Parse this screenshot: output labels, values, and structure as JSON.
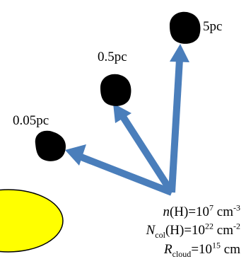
{
  "distances": [
    "0.05pc",
    "0.5pc",
    "5pc"
  ],
  "conditions": [
    {
      "parts": [
        "n",
        "(H)=10",
        "7",
        " cm",
        "-3"
      ]
    },
    {
      "parts": [
        "N",
        "col",
        "(H)=10",
        "22",
        " cm",
        "-2"
      ]
    },
    {
      "parts": [
        "R",
        "cloud",
        "=10",
        "15",
        " cm"
      ]
    }
  ]
}
